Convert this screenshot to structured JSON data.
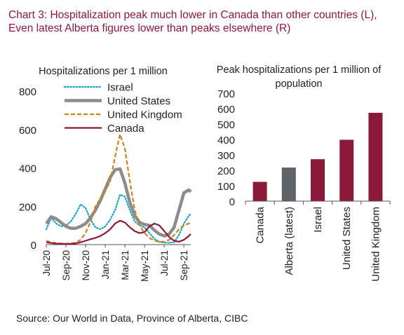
{
  "title": "Chart 3: Hospitalization peak much lower in Canada than other countries (L), Even latest Alberta figures lower than peaks elsewhere (R)",
  "source": "Source: Our World in Data, Province of Alberta, CIBC",
  "chart_data": [
    {
      "type": "line",
      "title": "Hospitalizations per 1 million",
      "ylim": [
        0,
        800
      ],
      "yticks": [
        0,
        200,
        400,
        600,
        800
      ],
      "xticks": [
        "Jul-20",
        "Sep-20",
        "Nov-20",
        "Jan-21",
        "Mar-21",
        "May-21",
        "Jul-21",
        "Sep-21"
      ],
      "xlim": [
        0,
        14.7
      ],
      "legend_position": "top",
      "series": [
        {
          "name": "Israel",
          "color": "#1aa3c8",
          "style": "dotted",
          "x": [
            0,
            0.5,
            1,
            1.5,
            2,
            2.5,
            3,
            3.5,
            4,
            4.5,
            5,
            5.5,
            6,
            6.5,
            7,
            7.5,
            8,
            8.5,
            9,
            9.5,
            10,
            10.5,
            11,
            11.5,
            12,
            12.5,
            13,
            13.5,
            14,
            14.5,
            14.7
          ],
          "values": [
            80,
            140,
            110,
            95,
            100,
            120,
            160,
            210,
            190,
            130,
            90,
            80,
            95,
            130,
            180,
            260,
            250,
            180,
            120,
            100,
            90,
            60,
            30,
            15,
            10,
            10,
            12,
            50,
            110,
            150,
            160
          ]
        },
        {
          "name": "United States",
          "color": "#8c8c8c",
          "style": "solid-thick",
          "x": [
            0,
            0.5,
            1,
            1.5,
            2,
            2.5,
            3,
            3.5,
            4,
            4.5,
            5,
            5.5,
            6,
            6.5,
            7,
            7.5,
            8,
            8.5,
            9,
            9.5,
            10,
            10.5,
            11,
            11.5,
            12,
            12.5,
            13,
            13.5,
            14,
            14.5,
            14.7
          ],
          "values": [
            110,
            145,
            135,
            115,
            95,
            85,
            85,
            95,
            110,
            140,
            180,
            230,
            290,
            350,
            390,
            395,
            320,
            220,
            150,
            115,
            105,
            100,
            75,
            55,
            45,
            55,
            90,
            180,
            270,
            285,
            275
          ]
        },
        {
          "name": "United Kingdom",
          "color": "#c8841f",
          "style": "dashed",
          "x": [
            0,
            0.5,
            1,
            1.5,
            2,
            2.5,
            3,
            3.5,
            4,
            4.5,
            5,
            5.5,
            6,
            6.5,
            7,
            7.5,
            8,
            8.5,
            9,
            9.5,
            10,
            10.5,
            11,
            11.5,
            12,
            12.5,
            13,
            13.5,
            14,
            14.5,
            14.7
          ],
          "values": [
            20,
            12,
            8,
            6,
            5,
            6,
            10,
            25,
            60,
            120,
            200,
            240,
            280,
            330,
            460,
            575,
            500,
            330,
            180,
            100,
            60,
            35,
            20,
            15,
            15,
            25,
            50,
            80,
            100,
            110,
            115
          ]
        },
        {
          "name": "Canada",
          "color": "#8b1a3a",
          "style": "solid",
          "x": [
            0,
            0.5,
            1,
            1.5,
            2,
            2.5,
            3,
            3.5,
            4,
            4.5,
            5,
            5.5,
            6,
            6.5,
            7,
            7.5,
            8,
            8.5,
            9,
            9.5,
            10,
            10.5,
            11,
            11.5,
            12,
            12.5,
            13,
            13.5,
            14,
            14.5,
            14.7
          ],
          "values": [
            12,
            8,
            5,
            4,
            3,
            4,
            6,
            12,
            20,
            28,
            35,
            45,
            60,
            80,
            110,
            125,
            115,
            90,
            70,
            60,
            65,
            95,
            110,
            100,
            70,
            40,
            20,
            15,
            25,
            45,
            55
          ]
        }
      ]
    },
    {
      "type": "bar",
      "title": "Peak hospitalizations per 1 million of population",
      "categories": [
        "Canada",
        "Alberta (latest)",
        "Israel",
        "United States",
        "United Kingdom"
      ],
      "values": [
        125,
        218,
        272,
        398,
        573
      ],
      "colors": [
        "#8b1a3a",
        "#5f6468",
        "#8b1a3a",
        "#8b1a3a",
        "#8b1a3a"
      ],
      "ylim": [
        0,
        700
      ],
      "yticks": [
        0,
        100,
        200,
        300,
        400,
        500,
        600,
        700
      ]
    }
  ]
}
